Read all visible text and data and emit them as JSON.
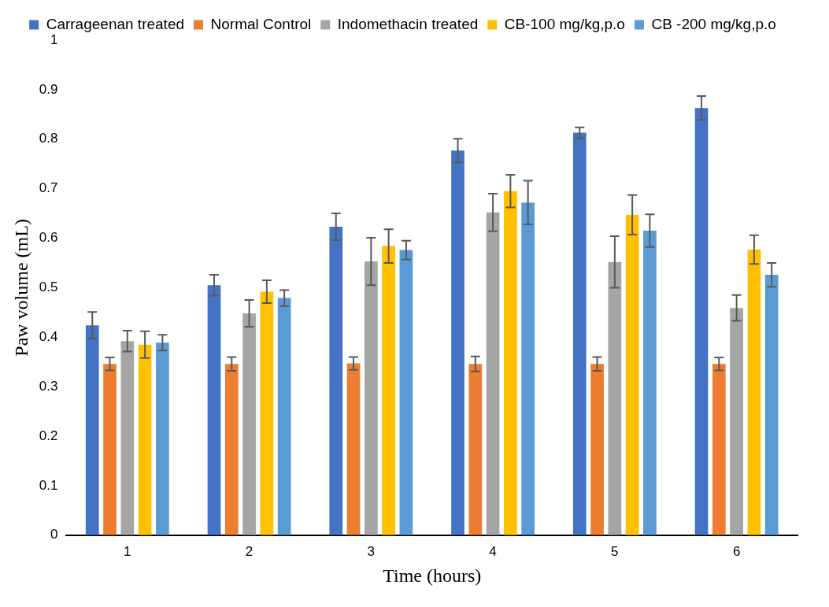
{
  "chart_data": {
    "type": "bar",
    "xlabel": "Time (hours)",
    "ylabel": "Paw volume (mL)",
    "categories": [
      "1",
      "2",
      "3",
      "4",
      "5",
      "6"
    ],
    "series": [
      {
        "name": "Carrageenan treated",
        "color": "#4472c4",
        "values": [
          0.424,
          0.505,
          0.623,
          0.777,
          0.813,
          0.863
        ],
        "errors": [
          0.027,
          0.021,
          0.027,
          0.024,
          0.011,
          0.024
        ]
      },
      {
        "name": "Normal Control",
        "color": "#ed7d31",
        "values": [
          0.346,
          0.346,
          0.347,
          0.346,
          0.346,
          0.346
        ],
        "errors": [
          0.013,
          0.014,
          0.013,
          0.015,
          0.014,
          0.013
        ]
      },
      {
        "name": "Indomethacin treated",
        "color": "#a5a5a5",
        "values": [
          0.392,
          0.448,
          0.553,
          0.652,
          0.552,
          0.459
        ],
        "errors": [
          0.021,
          0.027,
          0.048,
          0.038,
          0.052,
          0.026
        ]
      },
      {
        "name": "CB-100 mg/kg,p.o",
        "color": "#ffc000",
        "values": [
          0.385,
          0.492,
          0.584,
          0.695,
          0.647,
          0.577
        ],
        "errors": [
          0.027,
          0.023,
          0.034,
          0.033,
          0.04,
          0.029
        ]
      },
      {
        "name": "CB -200 mg/kg,p.o",
        "color": "#5b9bd5",
        "values": [
          0.389,
          0.479,
          0.576,
          0.672,
          0.615,
          0.526
        ],
        "errors": [
          0.016,
          0.016,
          0.019,
          0.044,
          0.033,
          0.024
        ]
      }
    ],
    "ylim": [
      0,
      1
    ],
    "yticks": [
      0,
      0.1,
      0.2,
      0.3,
      0.4,
      0.5,
      0.6,
      0.7,
      0.8,
      0.9,
      1
    ],
    "grid": false,
    "legend": "top"
  }
}
